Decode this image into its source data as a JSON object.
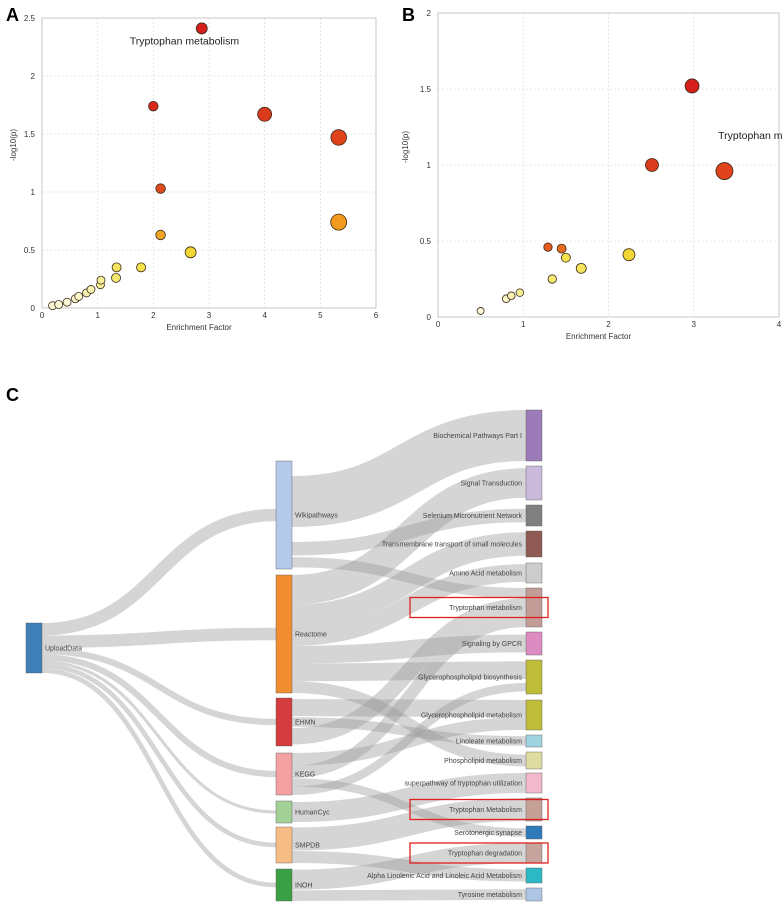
{
  "panel_labels": [
    "A",
    "B",
    "C"
  ],
  "chart_data": [
    {
      "type": "scatter",
      "panel": "A",
      "xlabel": "Enrichment Factor",
      "ylabel": "-log10(p)",
      "xlim": [
        0,
        6
      ],
      "ylim": [
        0,
        2.5
      ],
      "xticks": [
        "0",
        "1",
        "2",
        "3",
        "4",
        "5",
        "6"
      ],
      "yticks": [
        "0",
        "0.5",
        "1",
        "1.5",
        "2",
        "2.5"
      ],
      "grid": true,
      "annotations": [
        {
          "text": "Tryptophan metabolism",
          "x": 2.87,
          "y": 2.41
        }
      ],
      "points": [
        {
          "x": 0.19,
          "y": 0.02,
          "size": 4,
          "color": "#fbf8d8"
        },
        {
          "x": 0.3,
          "y": 0.03,
          "size": 4,
          "color": "#fbf8d8"
        },
        {
          "x": 0.45,
          "y": 0.05,
          "size": 4,
          "color": "#fbf8d8"
        },
        {
          "x": 0.6,
          "y": 0.08,
          "size": 4,
          "color": "#fbf6c8"
        },
        {
          "x": 0.66,
          "y": 0.1,
          "size": 4,
          "color": "#fbf6c8"
        },
        {
          "x": 0.8,
          "y": 0.13,
          "size": 4,
          "color": "#faf2b0"
        },
        {
          "x": 0.88,
          "y": 0.16,
          "size": 4,
          "color": "#faf2b0"
        },
        {
          "x": 1.05,
          "y": 0.2,
          "size": 4,
          "color": "#f9ee98"
        },
        {
          "x": 1.06,
          "y": 0.24,
          "size": 4,
          "color": "#f9ee98"
        },
        {
          "x": 1.33,
          "y": 0.26,
          "size": 4.5,
          "color": "#f7e870"
        },
        {
          "x": 1.34,
          "y": 0.35,
          "size": 4.5,
          "color": "#f6e55c"
        },
        {
          "x": 1.78,
          "y": 0.35,
          "size": 4.5,
          "color": "#f5e14a"
        },
        {
          "x": 2.67,
          "y": 0.48,
          "size": 5.5,
          "color": "#f2d734"
        },
        {
          "x": 2.13,
          "y": 0.63,
          "size": 4.8,
          "color": "#f0a526"
        },
        {
          "x": 5.33,
          "y": 0.74,
          "size": 8,
          "color": "#f29a1e"
        },
        {
          "x": 2.13,
          "y": 1.03,
          "size": 4.8,
          "color": "#de4a1e"
        },
        {
          "x": 2.0,
          "y": 1.74,
          "size": 4.8,
          "color": "#d8291a"
        },
        {
          "x": 4.0,
          "y": 1.67,
          "size": 7,
          "color": "#dc3a1c"
        },
        {
          "x": 5.33,
          "y": 1.47,
          "size": 7.8,
          "color": "#e0421c"
        },
        {
          "x": 2.87,
          "y": 2.41,
          "size": 5.5,
          "color": "#d41f1a"
        }
      ]
    },
    {
      "type": "scatter",
      "panel": "B",
      "xlabel": "Enrichment Factor",
      "ylabel": "-log10(p)",
      "xlim": [
        0,
        4
      ],
      "ylim": [
        0,
        2
      ],
      "xticks": [
        "0",
        "1",
        "2",
        "3",
        "4"
      ],
      "yticks": [
        "0",
        "0.5",
        "1",
        "1.5",
        "2"
      ],
      "grid": true,
      "annotations": [
        {
          "text": "Tryptophan metabolism",
          "x": 2.5,
          "y": 1.0
        }
      ],
      "points": [
        {
          "x": 0.5,
          "y": 0.04,
          "size": 3.5,
          "color": "#fbf8d8"
        },
        {
          "x": 0.8,
          "y": 0.12,
          "size": 3.8,
          "color": "#fbf6c8"
        },
        {
          "x": 0.86,
          "y": 0.14,
          "size": 3.8,
          "color": "#faf2b0"
        },
        {
          "x": 0.96,
          "y": 0.16,
          "size": 3.8,
          "color": "#f9ee98"
        },
        {
          "x": 1.34,
          "y": 0.25,
          "size": 4.2,
          "color": "#f7e870"
        },
        {
          "x": 1.5,
          "y": 0.39,
          "size": 4.5,
          "color": "#f5e14a"
        },
        {
          "x": 1.68,
          "y": 0.32,
          "size": 5,
          "color": "#f6e55c"
        },
        {
          "x": 2.24,
          "y": 0.41,
          "size": 6,
          "color": "#f2d734"
        },
        {
          "x": 1.29,
          "y": 0.46,
          "size": 4.2,
          "color": "#e45a1e"
        },
        {
          "x": 1.45,
          "y": 0.45,
          "size": 4.5,
          "color": "#e96a20"
        },
        {
          "x": 2.51,
          "y": 1.0,
          "size": 6.5,
          "color": "#dc3a1c"
        },
        {
          "x": 3.36,
          "y": 0.96,
          "size": 8.5,
          "color": "#e0421c"
        },
        {
          "x": 2.98,
          "y": 1.52,
          "size": 7,
          "color": "#d41f1a"
        }
      ]
    },
    {
      "type": "sankey",
      "panel": "C",
      "sources": [
        {
          "label": "UploadData",
          "color": "#3f7fb8"
        }
      ],
      "databases": [
        {
          "label": "Wikipathways",
          "color": "#b5c9e8"
        },
        {
          "label": "Reactome",
          "color": "#f08d31"
        },
        {
          "label": "EHMN",
          "color": "#d43d3f"
        },
        {
          "label": "KEGG",
          "color": "#f4a1a1"
        },
        {
          "label": "HumanCyc",
          "color": "#a3d195"
        },
        {
          "label": "SMPDB",
          "color": "#f6bd86"
        },
        {
          "label": "INOH",
          "color": "#3aa046"
        }
      ],
      "pathways": [
        {
          "label": "Biochemical Pathways Part I",
          "color": "#9b7bb8",
          "highlight": false
        },
        {
          "label": "Signal Transduction",
          "color": "#c9b9da",
          "highlight": false
        },
        {
          "label": "Selenium Micronutrient Network",
          "color": "#808080",
          "highlight": false
        },
        {
          "label": "Transmembrane transport of small molecules",
          "color": "#8f5a54",
          "highlight": false
        },
        {
          "label": "Amino Acid metabolism",
          "color": "#cccccc",
          "highlight": false
        },
        {
          "label": "Tryptophan metabolism",
          "color": "#c29c96",
          "highlight": true
        },
        {
          "label": "Signaling by GPCR",
          "color": "#dc8cc0",
          "highlight": false
        },
        {
          "label": "Glycerophospholipid biosynthesis",
          "color": "#bdbd3a",
          "highlight": false
        },
        {
          "label": "Glycerophospholipid metabolism",
          "color": "#bdbd3a",
          "highlight": false
        },
        {
          "label": "Linoleate metabolism",
          "color": "#9fd3e0",
          "highlight": false
        },
        {
          "label": "Phospholipid metabolism",
          "color": "#dedca0",
          "highlight": false
        },
        {
          "label": "superpathway of tryptophan utilization",
          "color": "#f2b8cc",
          "highlight": false
        },
        {
          "label": "Tryptophan Metabolism",
          "color": "#c4a096",
          "highlight": true
        },
        {
          "label": "Serotonergic synapse",
          "color": "#2f7ab8",
          "highlight": false
        },
        {
          "label": "Tryptophan degradation",
          "color": "#c4a49c",
          "highlight": true
        },
        {
          "label": "Alpha Linolenic Acid and Linoleic Acid Metabolism",
          "color": "#2cb8c4",
          "highlight": false
        },
        {
          "label": "Tyrosine metabolism",
          "color": "#aec6e6",
          "highlight": false
        }
      ],
      "links": [
        {
          "source": "UploadData",
          "target": "Wikipathways",
          "value": 4
        },
        {
          "source": "UploadData",
          "target": "Reactome",
          "value": 4
        },
        {
          "source": "UploadData",
          "target": "EHMN",
          "value": 2
        },
        {
          "source": "UploadData",
          "target": "KEGG",
          "value": 2
        },
        {
          "source": "UploadData",
          "target": "HumanCyc",
          "value": 1
        },
        {
          "source": "UploadData",
          "target": "SMPDB",
          "value": 1.5
        },
        {
          "source": "UploadData",
          "target": "INOH",
          "value": 1.5
        },
        {
          "source": "Wikipathways",
          "target": "Biochemical Pathways Part I",
          "value": 3
        },
        {
          "source": "Wikipathways",
          "target": "Selenium Micronutrient Network",
          "value": 0.5
        },
        {
          "source": "Wikipathways",
          "target": "Tryptophan metabolism",
          "value": 0.5
        },
        {
          "source": "Reactome",
          "target": "Signal Transduction",
          "value": 1
        },
        {
          "source": "Reactome",
          "target": "Transmembrane transport of small molecules",
          "value": 0.8
        },
        {
          "source": "Reactome",
          "target": "Amino Acid metabolism",
          "value": 0.6
        },
        {
          "source": "Reactome",
          "target": "Signaling by GPCR",
          "value": 0.6
        },
        {
          "source": "Reactome",
          "target": "Glycerophospholipid biosynthesis",
          "value": 0.6
        },
        {
          "source": "Reactome",
          "target": "Phospholipid metabolism",
          "value": 0.4
        },
        {
          "source": "EHMN",
          "target": "Glycerophospholipid metabolism",
          "value": 0.8
        },
        {
          "source": "EHMN",
          "target": "Linoleate metabolism",
          "value": 0.4
        },
        {
          "source": "EHMN",
          "target": "Tryptophan metabolism",
          "value": 0.8
        },
        {
          "source": "KEGG",
          "target": "Glycerophospholipid metabolism",
          "value": 0.6
        },
        {
          "source": "KEGG",
          "target": "Tryptophan metabolism",
          "value": 0.6
        },
        {
          "source": "KEGG",
          "target": "Serotonergic synapse",
          "value": 0.4
        },
        {
          "source": "KEGG",
          "target": "Glycerophospholipid biosynthesis",
          "value": 0.4
        },
        {
          "source": "HumanCyc",
          "target": "superpathway of tryptophan utilization",
          "value": 1
        },
        {
          "source": "SMPDB",
          "target": "Tryptophan Metabolism",
          "value": 1
        },
        {
          "source": "SMPDB",
          "target": "Alpha Linolenic Acid and Linoleic Acid Metabolism",
          "value": 0.5
        },
        {
          "source": "INOH",
          "target": "Tryptophan degradation",
          "value": 1
        },
        {
          "source": "INOH",
          "target": "Tyrosine metabolism",
          "value": 0.5
        }
      ]
    }
  ]
}
